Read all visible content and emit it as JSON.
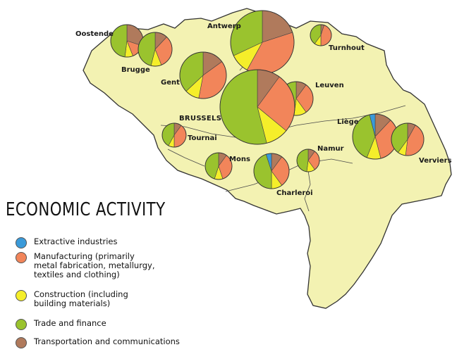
{
  "legend": {
    "title": "ECONOMIC ACTIVITY",
    "items": [
      {
        "key": "extractive",
        "color": "#3a9ad9",
        "lines": [
          "Extractive industries"
        ]
      },
      {
        "key": "manufacturing",
        "color": "#f2855a",
        "lines": [
          "Manufacturing  (primarily",
          "metal fabrication, metallurgy,",
          "textiles and clothing)"
        ]
      },
      {
        "key": "construction",
        "color": "#f5ee2a",
        "lines": [
          "Construction (including",
          "building materials)"
        ]
      },
      {
        "key": "trade",
        "color": "#9ac32e",
        "lines": [
          "Trade and finance"
        ]
      },
      {
        "key": "transport",
        "color": "#b07a5c",
        "lines": [
          "Transportation and communications"
        ]
      }
    ]
  },
  "colors": {
    "land": "#f3f2b2",
    "border": "#333333",
    "background": "#ffffff"
  },
  "cities": [
    {
      "name": "Oostende",
      "bold": false,
      "shares": {
        "extractive": 0,
        "manufacturing": 14,
        "construction": 8,
        "trade": 48,
        "transport": 30
      }
    },
    {
      "name": "Brugge",
      "bold": false,
      "shares": {
        "extractive": 0,
        "manufacturing": 32,
        "construction": 10,
        "trade": 46,
        "transport": 12
      }
    },
    {
      "name": "Antwerp",
      "bold": false,
      "shares": {
        "extractive": 0,
        "manufacturing": 38,
        "construction": 10,
        "trade": 32,
        "transport": 20
      }
    },
    {
      "name": "Turnhout",
      "bold": false,
      "shares": {
        "extractive": 0,
        "manufacturing": 45,
        "construction": 10,
        "trade": 40,
        "transport": 5
      }
    },
    {
      "name": "Gent",
      "bold": false,
      "shares": {
        "extractive": 0,
        "manufacturing": 38,
        "construction": 10,
        "trade": 37,
        "transport": 15
      }
    },
    {
      "name": "Leuven",
      "bold": false,
      "shares": {
        "extractive": 0,
        "manufacturing": 30,
        "construction": 12,
        "trade": 48,
        "transport": 10
      }
    },
    {
      "name": "BRUSSELS",
      "bold": true,
      "shares": {
        "extractive": 0,
        "manufacturing": 26,
        "construction": 10,
        "trade": 54,
        "transport": 10
      }
    },
    {
      "name": "Tournai",
      "bold": false,
      "shares": {
        "extractive": 0,
        "manufacturing": 40,
        "construction": 8,
        "trade": 42,
        "transport": 10
      }
    },
    {
      "name": "Liège",
      "bold": false,
      "shares": {
        "extractive": 4,
        "manufacturing": 34,
        "construction": 10,
        "trade": 40,
        "transport": 12
      }
    },
    {
      "name": "Verviers",
      "bold": false,
      "shares": {
        "extractive": 0,
        "manufacturing": 44,
        "construction": 8,
        "trade": 40,
        "transport": 8
      }
    },
    {
      "name": "Mons",
      "bold": false,
      "shares": {
        "extractive": 0,
        "manufacturing": 35,
        "construction": 10,
        "trade": 45,
        "transport": 10
      }
    },
    {
      "name": "Charleroi",
      "bold": false,
      "shares": {
        "extractive": 5,
        "manufacturing": 30,
        "construction": 10,
        "trade": 45,
        "transport": 10
      }
    },
    {
      "name": "Namur",
      "bold": false,
      "shares": {
        "extractive": 0,
        "manufacturing": 30,
        "construction": 12,
        "trade": 48,
        "transport": 10
      }
    }
  ]
}
